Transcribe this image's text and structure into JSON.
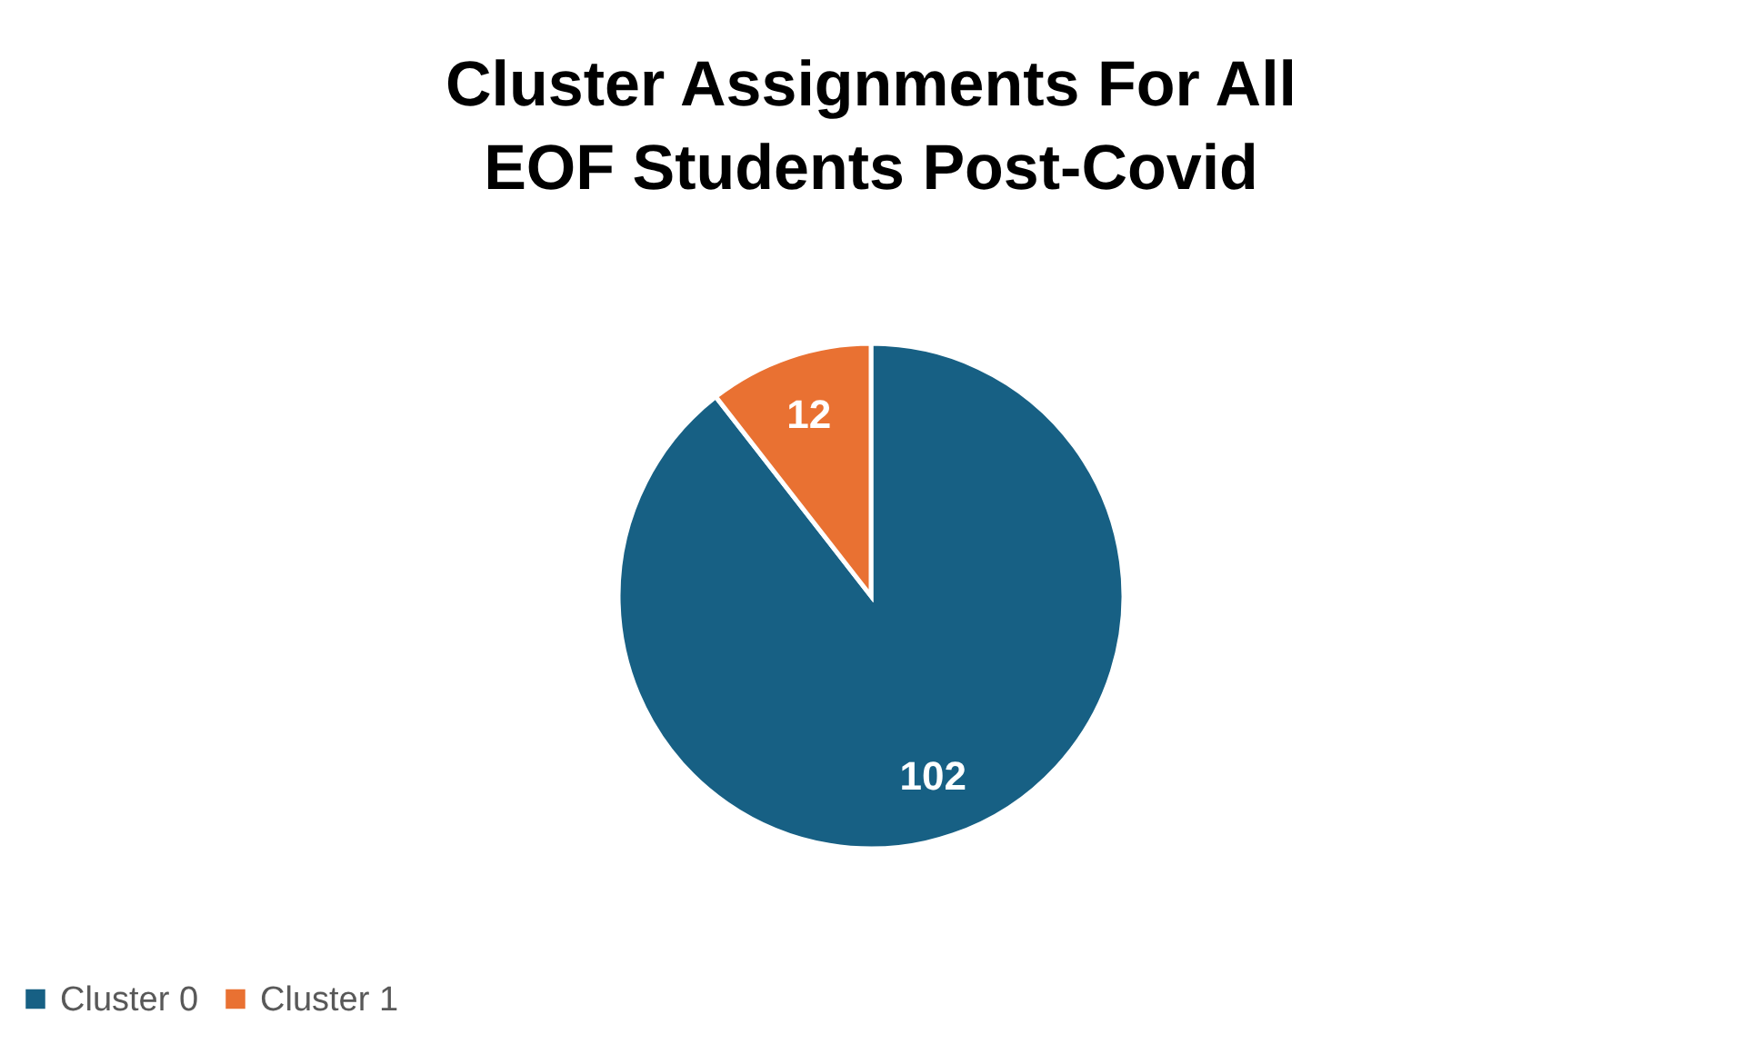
{
  "chart_data": {
    "type": "pie",
    "title": "Cluster Assignments For All EOF Students Post-Covid",
    "categories": [
      "Cluster 0",
      "Cluster 1"
    ],
    "values": [
      102,
      12
    ],
    "colors": [
      "#176084",
      "#e97132"
    ],
    "data_labels": true,
    "legend": "bottom"
  }
}
